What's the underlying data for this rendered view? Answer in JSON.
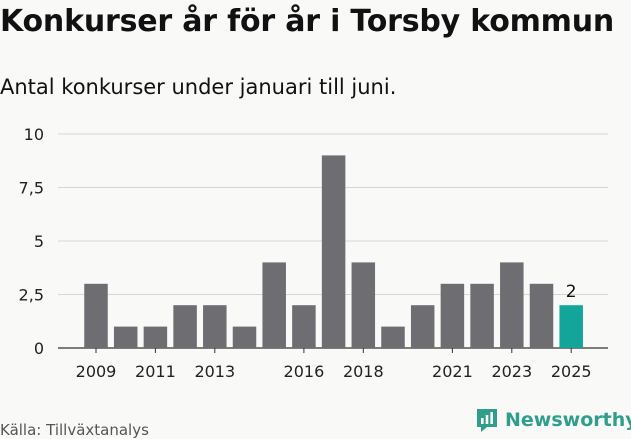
{
  "header": {
    "title": "Konkurser år för år i Torsby kommun",
    "subtitle": "Antal konkurser under januari till juni."
  },
  "footer": {
    "source": "Källa: Tillväxtanalys",
    "brand_name": "Newsworthy",
    "brand_icon": "newsworthy-logo-icon"
  },
  "colors": {
    "bar": "#6e6d72",
    "highlight": "#14a59a",
    "grid": "#d6d6d6",
    "brand": "#2f9e8b"
  },
  "chart_data": {
    "type": "bar",
    "title": "Konkurser år för år i Torsby kommun",
    "subtitle": "Antal konkurser under januari till juni.",
    "xlabel": "",
    "ylabel": "",
    "categories": [
      "2009",
      "2010",
      "2011",
      "2012",
      "2013",
      "2014",
      "2015",
      "2016",
      "2017",
      "2018",
      "2019",
      "2020",
      "2021",
      "2022",
      "2023",
      "2024",
      "2025"
    ],
    "values": [
      3,
      1,
      1,
      2,
      2,
      1,
      4,
      2,
      9,
      4,
      1,
      2,
      3,
      3,
      4,
      3,
      2
    ],
    "x_tick_labels": [
      "2009",
      "2011",
      "2013",
      "2016",
      "2018",
      "2021",
      "2023",
      "2025"
    ],
    "y_ticks": [
      0,
      2.5,
      5,
      7.5,
      10
    ],
    "y_tick_labels": [
      "0",
      "2,5",
      "5",
      "7,5",
      "10"
    ],
    "ylim": [
      0,
      10
    ],
    "grid": true,
    "highlight_index": 16,
    "data_labels": [
      {
        "index": 16,
        "text": "2"
      }
    ]
  }
}
